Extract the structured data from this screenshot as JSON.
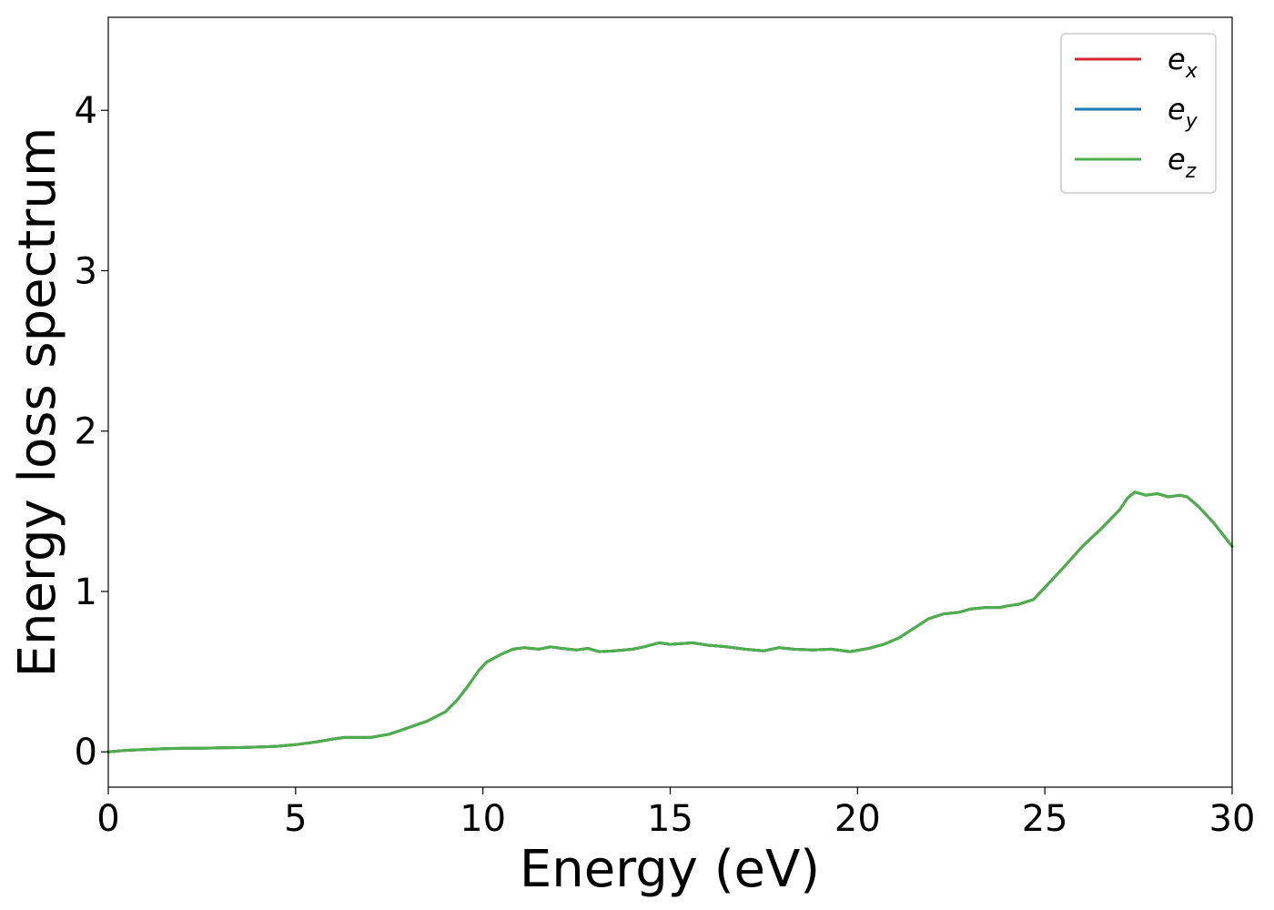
{
  "chart_data": {
    "type": "line",
    "title": "",
    "xlabel": "Energy (eV)",
    "ylabel": "Energy loss spectrum",
    "xlim": [
      0,
      30
    ],
    "ylim": [
      -0.22,
      4.58
    ],
    "xticks": [
      0,
      5,
      10,
      15,
      20,
      25,
      30
    ],
    "yticks": [
      0,
      1,
      2,
      3,
      4
    ],
    "grid": false,
    "legend_position": "top-right",
    "x": [
      0,
      0.5,
      1,
      1.5,
      2,
      2.5,
      3,
      3.5,
      4,
      4.5,
      5,
      5.5,
      6,
      6.3,
      6.6,
      7,
      7.5,
      8,
      8.5,
      9,
      9.3,
      9.6,
      9.9,
      10.1,
      10.5,
      10.8,
      11.1,
      11.5,
      11.8,
      12.1,
      12.5,
      12.8,
      13.1,
      13.5,
      14.0,
      14.3,
      14.7,
      15.0,
      15.3,
      15.6,
      16.0,
      16.5,
      17.0,
      17.5,
      17.9,
      18.3,
      18.8,
      19.3,
      19.8,
      20.3,
      20.7,
      21.1,
      21.5,
      21.9,
      22.3,
      22.7,
      23.0,
      23.4,
      23.8,
      24.0,
      24.3,
      24.7,
      25.1,
      25.5,
      26.0,
      26.5,
      27.0,
      27.2,
      27.4,
      27.7,
      28.0,
      28.3,
      28.6,
      28.8,
      29.1,
      29.5,
      30.0
    ],
    "series": [
      {
        "name": "e_x",
        "label_base": "e",
        "label_sub": "x",
        "color": "#d62728",
        "values": [
          0.0,
          0.01,
          0.015,
          0.02,
          0.022,
          0.023,
          0.025,
          0.027,
          0.03,
          0.035,
          0.045,
          0.06,
          0.08,
          0.09,
          0.09,
          0.09,
          0.11,
          0.15,
          0.19,
          0.25,
          0.32,
          0.41,
          0.51,
          0.56,
          0.61,
          0.64,
          0.65,
          0.64,
          0.655,
          0.645,
          0.635,
          0.645,
          0.625,
          0.63,
          0.64,
          0.655,
          0.68,
          0.67,
          0.675,
          0.68,
          0.665,
          0.655,
          0.64,
          0.63,
          0.65,
          0.64,
          0.635,
          0.64,
          0.625,
          0.645,
          0.67,
          0.71,
          0.77,
          0.83,
          0.86,
          0.87,
          0.89,
          0.9,
          0.9,
          0.91,
          0.92,
          0.95,
          1.05,
          1.15,
          1.28,
          1.39,
          1.51,
          1.58,
          1.62,
          1.6,
          1.61,
          1.59,
          1.6,
          1.59,
          1.53,
          1.43,
          1.28
        ]
      },
      {
        "name": "e_y",
        "label_base": "e",
        "label_sub": "y",
        "color": "#1f77b4",
        "values": [
          0.0,
          0.01,
          0.015,
          0.02,
          0.022,
          0.023,
          0.025,
          0.027,
          0.03,
          0.035,
          0.045,
          0.06,
          0.08,
          0.09,
          0.09,
          0.09,
          0.11,
          0.15,
          0.19,
          0.25,
          0.32,
          0.41,
          0.51,
          0.56,
          0.61,
          0.64,
          0.65,
          0.64,
          0.655,
          0.645,
          0.635,
          0.645,
          0.625,
          0.63,
          0.64,
          0.655,
          0.68,
          0.67,
          0.675,
          0.68,
          0.665,
          0.655,
          0.64,
          0.63,
          0.65,
          0.64,
          0.635,
          0.64,
          0.625,
          0.645,
          0.67,
          0.71,
          0.77,
          0.83,
          0.86,
          0.87,
          0.89,
          0.9,
          0.9,
          0.91,
          0.92,
          0.95,
          1.05,
          1.15,
          1.28,
          1.39,
          1.51,
          1.58,
          1.62,
          1.6,
          1.61,
          1.59,
          1.6,
          1.59,
          1.53,
          1.43,
          1.28
        ]
      },
      {
        "name": "e_z",
        "label_base": "e",
        "label_sub": "z",
        "color": "#4daf4a",
        "values": [
          0.0,
          0.01,
          0.015,
          0.02,
          0.022,
          0.023,
          0.025,
          0.027,
          0.03,
          0.035,
          0.045,
          0.06,
          0.08,
          0.09,
          0.09,
          0.09,
          0.11,
          0.15,
          0.19,
          0.25,
          0.32,
          0.41,
          0.51,
          0.56,
          0.61,
          0.64,
          0.65,
          0.64,
          0.655,
          0.645,
          0.635,
          0.645,
          0.625,
          0.63,
          0.64,
          0.655,
          0.68,
          0.67,
          0.675,
          0.68,
          0.665,
          0.655,
          0.64,
          0.63,
          0.65,
          0.64,
          0.635,
          0.64,
          0.625,
          0.645,
          0.67,
          0.71,
          0.77,
          0.83,
          0.86,
          0.87,
          0.89,
          0.9,
          0.9,
          0.91,
          0.92,
          0.95,
          1.05,
          1.15,
          1.28,
          1.39,
          1.51,
          1.58,
          1.62,
          1.6,
          1.61,
          1.59,
          1.6,
          1.59,
          1.53,
          1.43,
          1.28
        ]
      }
    ]
  }
}
